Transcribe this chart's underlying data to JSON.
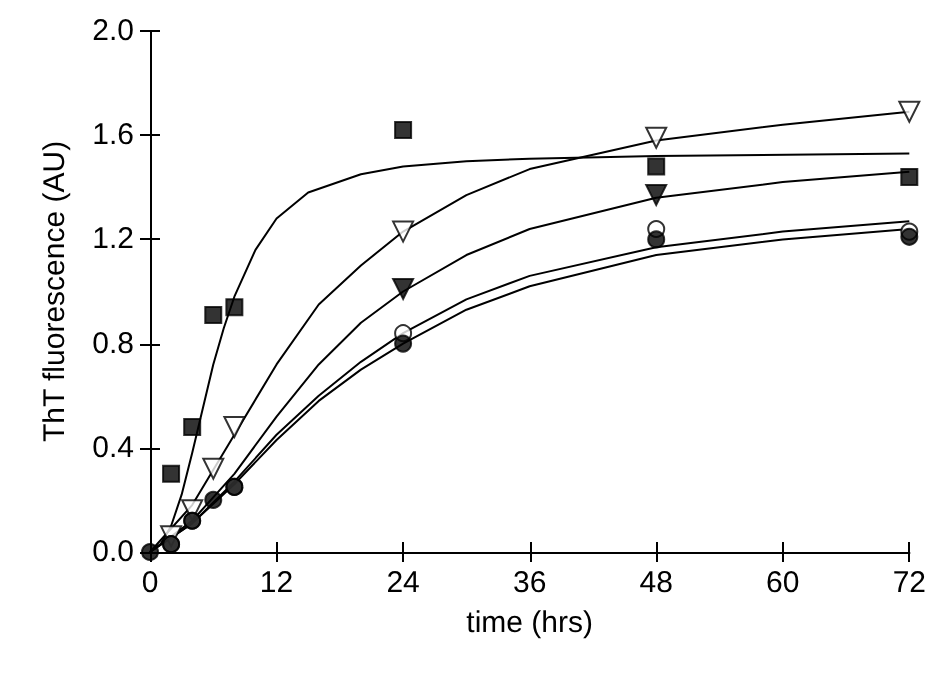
{
  "chart_data": {
    "type": "scatter",
    "xlabel": "time (hrs)",
    "ylabel": "ThT fluorescence (AU)",
    "xlim": [
      0,
      72
    ],
    "xticks": [
      0,
      12,
      24,
      36,
      48,
      60,
      72
    ],
    "ylim": [
      0,
      2.0
    ],
    "yticks": [
      {
        "value": 0,
        "label": "0.0"
      },
      {
        "value": 0.4,
        "label": "0.4"
      },
      {
        "value": 0.8,
        "label": "0.8"
      },
      {
        "value": 1.2,
        "label": "1.2"
      },
      {
        "value": 1.6,
        "label": "1.6"
      },
      {
        "value": 2.0,
        "label": "2.0"
      }
    ],
    "grid": false,
    "series": [
      {
        "type": "line",
        "marker": "none",
        "color": "#000000",
        "x": [
          0,
          1,
          2,
          3,
          4,
          5,
          6,
          7,
          8,
          10,
          12,
          15,
          20,
          24,
          30,
          36,
          48,
          72
        ],
        "values": [
          0.0,
          0.03,
          0.1,
          0.22,
          0.38,
          0.55,
          0.72,
          0.86,
          0.98,
          1.16,
          1.28,
          1.38,
          1.45,
          1.48,
          1.5,
          1.51,
          1.52,
          1.53
        ]
      },
      {
        "type": "line",
        "marker": "none",
        "color": "#000000",
        "x": [
          0,
          4,
          8,
          12,
          16,
          20,
          24,
          30,
          36,
          48,
          60,
          72
        ],
        "values": [
          0,
          0.18,
          0.45,
          0.72,
          0.95,
          1.1,
          1.23,
          1.37,
          1.47,
          1.58,
          1.64,
          1.69
        ]
      },
      {
        "type": "line",
        "marker": "none",
        "color": "#000000",
        "x": [
          0,
          4,
          8,
          12,
          16,
          20,
          24,
          30,
          36,
          48,
          60,
          72
        ],
        "values": [
          0,
          0.12,
          0.3,
          0.52,
          0.72,
          0.88,
          1.0,
          1.14,
          1.24,
          1.36,
          1.42,
          1.46
        ]
      },
      {
        "type": "line",
        "marker": "none",
        "color": "#000000",
        "x": [
          0,
          4,
          8,
          12,
          16,
          20,
          24,
          30,
          36,
          48,
          60,
          72
        ],
        "values": [
          0,
          0.11,
          0.27,
          0.45,
          0.6,
          0.73,
          0.84,
          0.97,
          1.06,
          1.17,
          1.23,
          1.27
        ]
      },
      {
        "type": "line",
        "marker": "none",
        "color": "#000000",
        "x": [
          0,
          4,
          8,
          12,
          16,
          20,
          24,
          30,
          36,
          48,
          60,
          72
        ],
        "values": [
          0,
          0.11,
          0.26,
          0.43,
          0.58,
          0.7,
          0.8,
          0.93,
          1.02,
          1.14,
          1.2,
          1.24
        ]
      },
      {
        "marker": "square",
        "color": "#000000",
        "x": [
          2,
          4,
          6,
          8,
          24,
          48,
          72
        ],
        "values": [
          0.3,
          0.48,
          0.91,
          0.94,
          1.62,
          1.48,
          1.44
        ]
      },
      {
        "marker": "triangle",
        "color": "#ffffff",
        "x": [
          2,
          4,
          6,
          8,
          24,
          48,
          72
        ],
        "values": [
          0.06,
          0.16,
          0.32,
          0.48,
          1.23,
          1.59,
          1.69
        ]
      },
      {
        "marker": "triangle",
        "color": "#000000",
        "x": [
          24,
          48
        ],
        "values": [
          1.01,
          1.37
        ]
      },
      {
        "marker": "circle",
        "color": "#ffffff",
        "x": [
          2,
          4,
          8,
          24,
          48,
          72
        ],
        "values": [
          0.03,
          0.12,
          0.25,
          0.84,
          1.24,
          1.23
        ]
      },
      {
        "marker": "circle",
        "color": "#000000",
        "x": [
          0,
          2,
          4,
          6,
          8,
          24,
          48,
          72
        ],
        "values": [
          0,
          0.03,
          0.12,
          0.2,
          0.25,
          0.8,
          1.2,
          1.21
        ]
      }
    ]
  }
}
